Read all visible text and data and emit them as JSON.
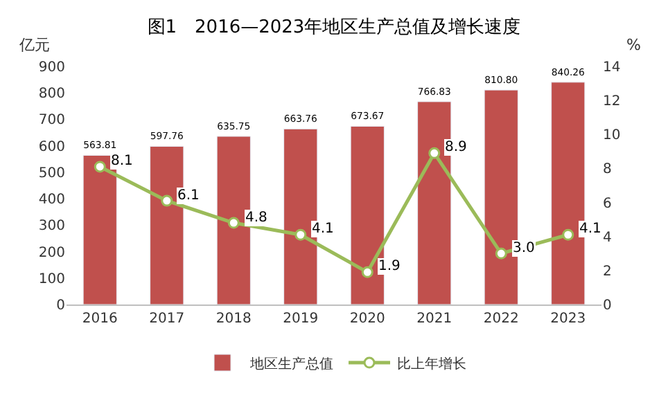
{
  "chart_data": {
    "type": "bar",
    "title": "图1　2016—2023年地区生产总值及增长速度",
    "ylabel": "亿元",
    "y2label": "%",
    "categories": [
      "2016",
      "2017",
      "2018",
      "2019",
      "2020",
      "2021",
      "2022",
      "2023"
    ],
    "series": [
      {
        "name": "地区生产总值",
        "color": "#c0504d",
        "values": [
          563.81,
          597.76,
          635.75,
          663.76,
          673.67,
          766.83,
          810.8,
          840.26
        ],
        "value_labels": [
          "563.81",
          "597.76",
          "635.75",
          "663.76",
          "673.67",
          "766.83",
          "810.80",
          "840.26"
        ]
      },
      {
        "name": "比上年增长",
        "type": "line",
        "axis": "y2",
        "color": "#9bbb59",
        "marker": "circle",
        "values": [
          8.1,
          6.1,
          4.8,
          4.1,
          1.9,
          8.9,
          3.0,
          4.1
        ],
        "value_labels": [
          "8.1",
          "6.1",
          "4.8",
          "4.1",
          "1.9",
          "8.9",
          "3.0",
          "4.1"
        ]
      }
    ],
    "ylim": [
      0,
      900
    ],
    "yticks": [
      0,
      100,
      200,
      300,
      400,
      500,
      600,
      700,
      800,
      900
    ],
    "y2lim": [
      0,
      14
    ],
    "y2ticks": [
      0,
      2,
      4,
      6,
      8,
      10,
      12,
      14
    ],
    "legend": "bottom"
  }
}
